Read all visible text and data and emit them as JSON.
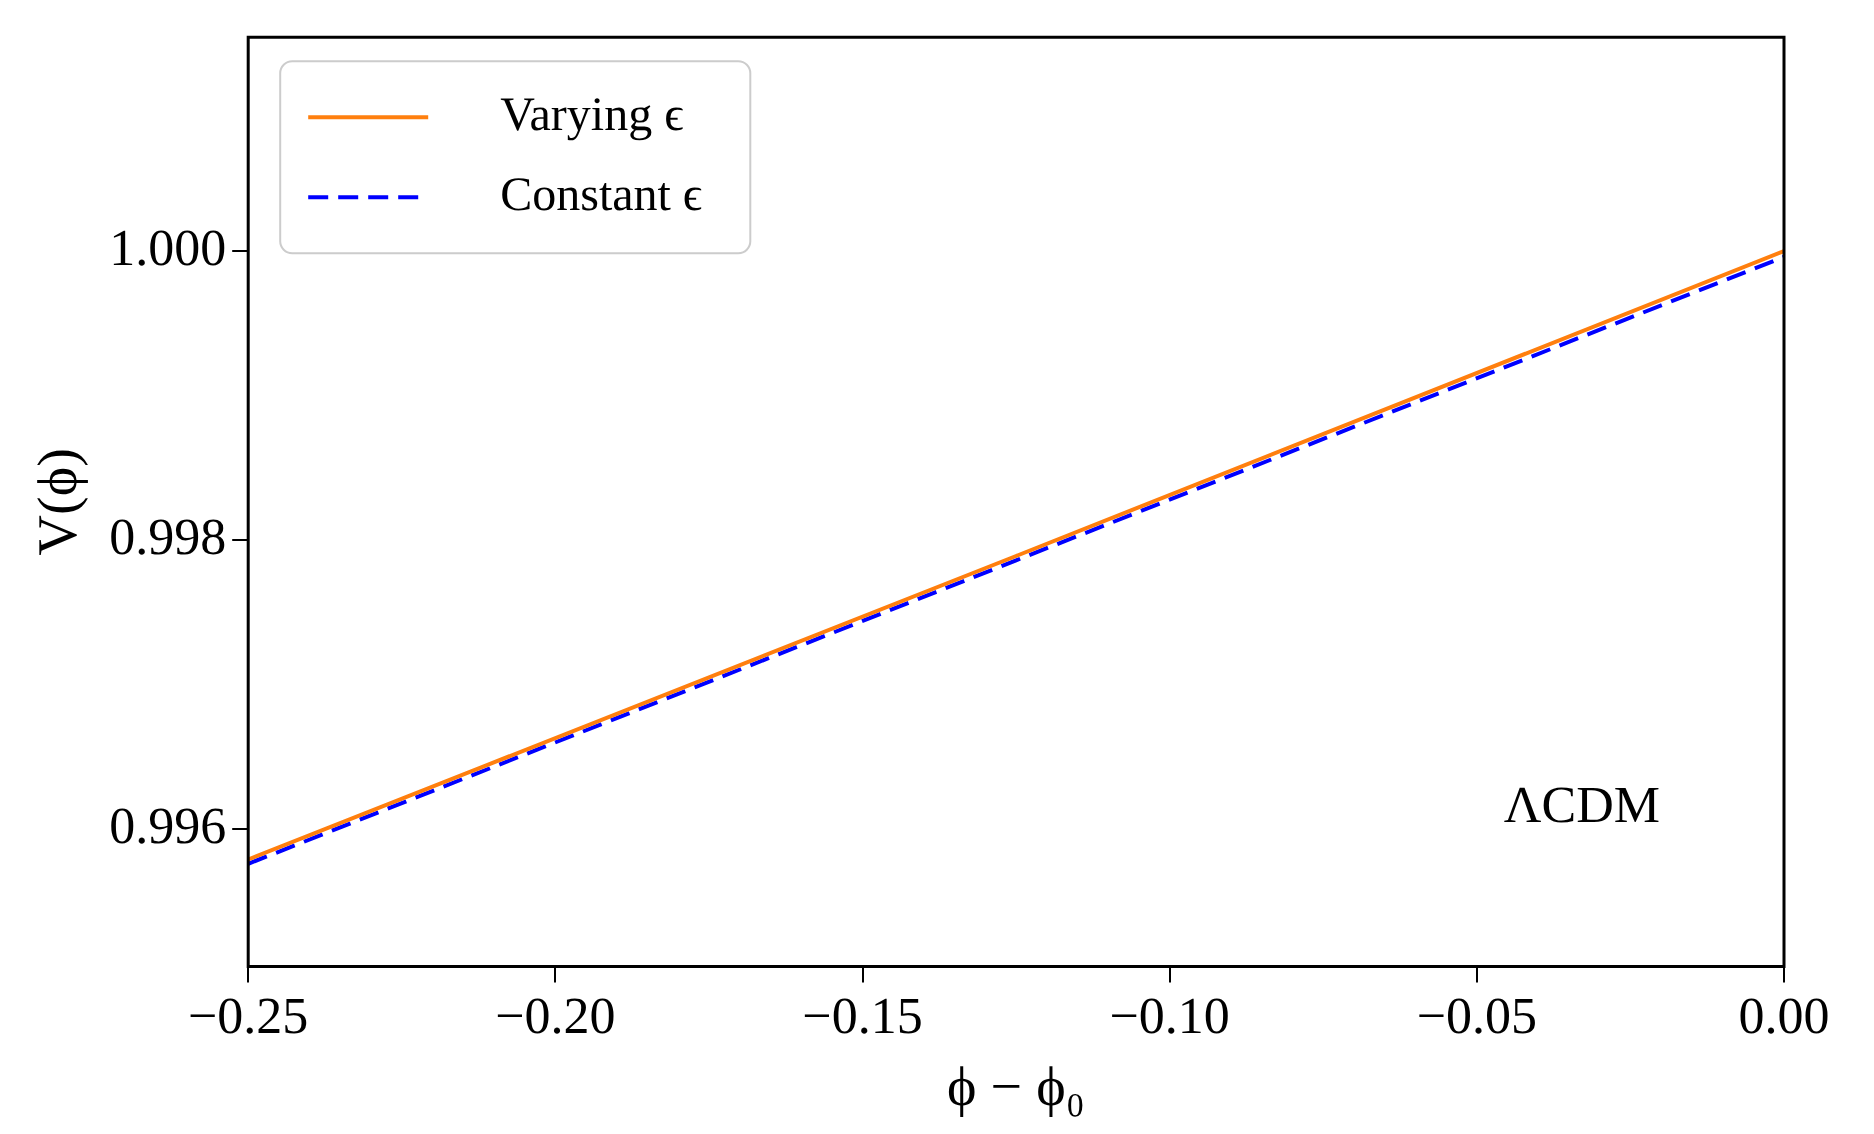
{
  "chart_data": {
    "type": "line",
    "xlabel": "ϕ − ϕ₀",
    "ylabel": "V(ϕ)",
    "x": [
      -0.25,
      -0.125,
      0
    ],
    "series": [
      {
        "name": "Varying ϵ",
        "color": "#ff7f0e",
        "values": [
          0.99579,
          0.99789,
          1.0
        ],
        "line_style": "solid"
      },
      {
        "name": "Constant ϵ",
        "color": "#0000ff",
        "values": [
          0.99576,
          0.99786,
          0.99996
        ],
        "line_style": "dashed"
      }
    ],
    "xlim": [
      -0.25,
      0
    ],
    "xticks": [
      {
        "value": -0.25,
        "label": "−0.25"
      },
      {
        "value": -0.2,
        "label": "−0.20"
      },
      {
        "value": -0.15,
        "label": "−0.15"
      },
      {
        "value": -0.1,
        "label": "−0.10"
      },
      {
        "value": -0.05,
        "label": "−0.05"
      },
      {
        "value": 0,
        "label": "0.00"
      }
    ],
    "ylim": [
      0.99505,
      1.00148
    ],
    "yticks": [
      {
        "value": 0.996,
        "label": "0.996"
      },
      {
        "value": 0.998,
        "label": "0.998"
      },
      {
        "value": 1.0,
        "label": "1.000"
      }
    ],
    "annotations": [
      "ΛCDM"
    ],
    "legend": "top left",
    "grid": false,
    "marker": "none"
  }
}
